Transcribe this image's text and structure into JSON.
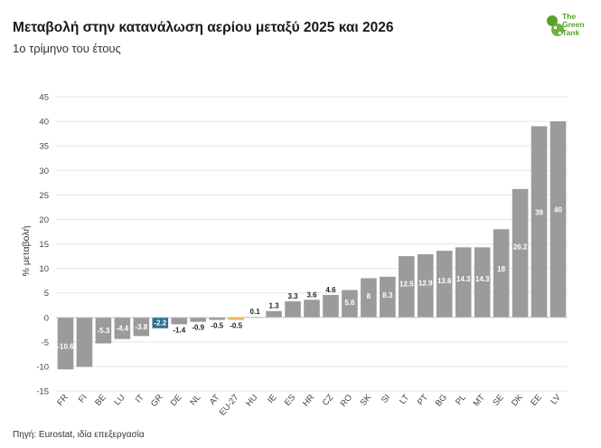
{
  "title": "Μεταβολή στην κατανάλωση αερίου μεταξύ 2025 και 2026",
  "subtitle": "1ο τρίμηνο του έτους",
  "source": "Πηγή: Eurostat, ιδία επεξεργασία",
  "logo": {
    "line1": "The",
    "line2": "Green",
    "line3": "Tank"
  },
  "colors": {
    "default": "#9b9b9b",
    "highlight_gr": "#2e6f8e",
    "highlight_eu": "#f2b736",
    "grid": "#e6e6e6",
    "logo": "#5aa02c"
  },
  "chart_data": {
    "type": "bar",
    "title": "Μεταβολή στην κατανάλωση αερίου μεταξύ 2025 και 2026",
    "subtitle": "1ο τρίμηνο του έτους",
    "xlabel": "",
    "ylabel": "% μεταβολή",
    "ylim": [
      -15,
      45
    ],
    "yticks": [
      -15,
      -10,
      -5,
      0,
      5,
      10,
      15,
      20,
      25,
      30,
      35,
      40,
      45
    ],
    "grid": true,
    "categories": [
      "FR",
      "FI",
      "BE",
      "LU",
      "IT",
      "GR",
      "DE",
      "NL",
      "AT",
      "EU-27",
      "HU",
      "IE",
      "ES",
      "HR",
      "CZ",
      "RO",
      "SK",
      "SI",
      "LT",
      "PT",
      "BG",
      "PL",
      "MT",
      "SE",
      "DK",
      "EE",
      "LV"
    ],
    "values": [
      -10.6,
      -10.1,
      -5.3,
      -4.4,
      -3.8,
      -2.2,
      -1.4,
      -0.9,
      -0.5,
      -0.5,
      0.1,
      1.3,
      3.3,
      3.6,
      4.6,
      5.6,
      8,
      8.3,
      12.5,
      12.9,
      13.6,
      14.3,
      14.3,
      18,
      26.2,
      39,
      40
    ],
    "labels": [
      "-10.6",
      "",
      "-5.3",
      "-4.4",
      "-3.8",
      "-2.2",
      "-1.4",
      "-0.9",
      "-0.5",
      "-0.5",
      "0.1",
      "1.3",
      "3.3",
      "3.6",
      "4.6",
      "5.6",
      "8",
      "8.3",
      "12.5",
      "12.9",
      "13.6",
      "14.3",
      "14.3",
      "18",
      "26.2",
      "39",
      "40"
    ],
    "bar_colors": [
      "default",
      "default",
      "default",
      "default",
      "default",
      "highlight_gr",
      "default",
      "default",
      "default",
      "highlight_eu",
      "default",
      "default",
      "default",
      "default",
      "default",
      "default",
      "default",
      "default",
      "default",
      "default",
      "default",
      "default",
      "default",
      "default",
      "default",
      "default",
      "default"
    ]
  }
}
